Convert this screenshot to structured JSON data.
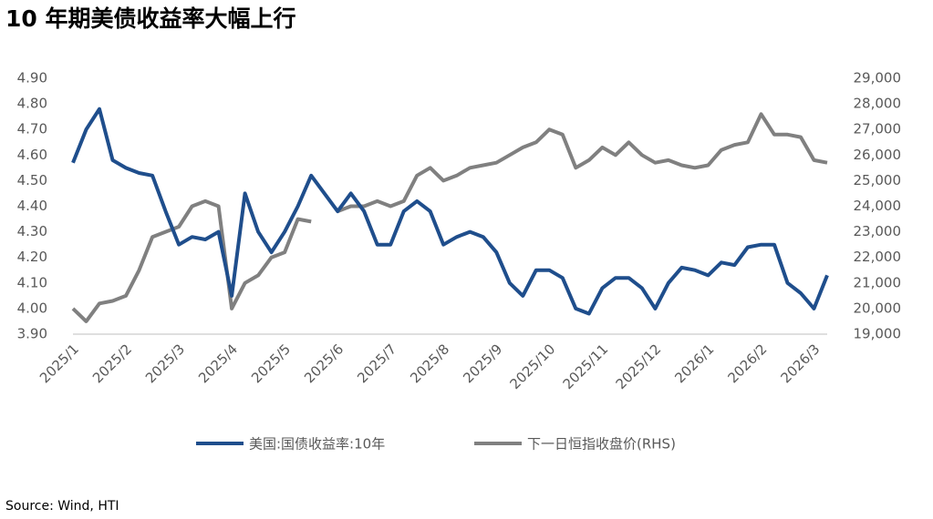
{
  "chart_data": {
    "type": "line",
    "title": "10 年期美债收益率大幅上行",
    "source": "Source: Wind, HTI",
    "categories": [
      "2025/1",
      null,
      null,
      null,
      "2025/2",
      null,
      null,
      null,
      "2025/3",
      null,
      null,
      null,
      "2025/4",
      null,
      null,
      null,
      "2025/5",
      null,
      null,
      null,
      "2025/6",
      null,
      null,
      null,
      "2025/7",
      null,
      null,
      null,
      "2025/8",
      null,
      null,
      null,
      "2025/9",
      null,
      null,
      null,
      "2025/10",
      null,
      null,
      null,
      "2025/11",
      null,
      null,
      null,
      "2025/12",
      null,
      null,
      null,
      "2026/1",
      null,
      null,
      null,
      "2026/2",
      null,
      null,
      null,
      "2026/3",
      null
    ],
    "series": [
      {
        "name": "美国:国债收益率:10年",
        "color": "#1f4e8c",
        "axis": "y",
        "values": [
          4.57,
          4.7,
          4.78,
          4.58,
          4.55,
          4.53,
          4.52,
          4.38,
          4.25,
          4.28,
          4.27,
          4.3,
          4.05,
          4.45,
          4.3,
          4.22,
          4.3,
          4.4,
          4.52,
          4.45,
          4.38,
          4.45,
          4.38,
          4.25,
          4.25,
          4.38,
          4.42,
          4.38,
          4.25,
          4.28,
          4.3,
          4.28,
          4.22,
          4.1,
          4.05,
          4.15,
          4.15,
          4.12,
          4.0,
          3.98,
          4.08,
          4.12,
          4.12,
          4.08,
          4.0,
          4.1,
          4.16,
          4.15,
          4.13,
          4.18,
          4.17,
          4.24,
          4.25,
          4.25,
          4.1,
          4.06,
          4.0,
          4.13
        ]
      },
      {
        "name": "下一日恒指收盘价(RHS)",
        "color": "#808080",
        "axis": "y2",
        "values": [
          20000,
          19500,
          20200,
          20300,
          20500,
          21500,
          22800,
          23000,
          23200,
          24000,
          24200,
          24000,
          20000,
          21000,
          21300,
          22000,
          22200,
          23500,
          23400,
          null,
          23800,
          24000,
          24000,
          24200,
          24000,
          24200,
          25200,
          25500,
          25000,
          25200,
          25500,
          25600,
          25700,
          26000,
          26300,
          26500,
          27000,
          26800,
          25500,
          25800,
          26300,
          26000,
          26500,
          26000,
          25700,
          25800,
          25600,
          25500,
          25600,
          26200,
          26400,
          26500,
          27600,
          26800,
          26800,
          26700,
          25800,
          25700
        ]
      }
    ],
    "ylim": [
      3.9,
      4.9
    ],
    "yticks": [
      {
        "value": 3.9,
        "label": "3.90"
      },
      {
        "value": 4.0,
        "label": "4.00"
      },
      {
        "value": 4.1,
        "label": "4.10"
      },
      {
        "value": 4.2,
        "label": "4.20"
      },
      {
        "value": 4.3,
        "label": "4.30"
      },
      {
        "value": 4.4,
        "label": "4.40"
      },
      {
        "value": 4.5,
        "label": "4.50"
      },
      {
        "value": 4.6,
        "label": "4.60"
      },
      {
        "value": 4.7,
        "label": "4.70"
      },
      {
        "value": 4.8,
        "label": "4.80"
      },
      {
        "value": 4.9,
        "label": "4.90"
      }
    ],
    "y2lim": [
      19000,
      29000
    ],
    "y2ticks": [
      {
        "value": 19000,
        "label": "19,000"
      },
      {
        "value": 20000,
        "label": "20,000"
      },
      {
        "value": 21000,
        "label": "21,000"
      },
      {
        "value": 22000,
        "label": "22,000"
      },
      {
        "value": 23000,
        "label": "23,000"
      },
      {
        "value": 24000,
        "label": "24,000"
      },
      {
        "value": 25000,
        "label": "25,000"
      },
      {
        "value": 26000,
        "label": "26,000"
      },
      {
        "value": 27000,
        "label": "27,000"
      },
      {
        "value": 28000,
        "label": "28,000"
      },
      {
        "value": 29000,
        "label": "29,000"
      }
    ],
    "grid": false,
    "legend": "bottom"
  }
}
